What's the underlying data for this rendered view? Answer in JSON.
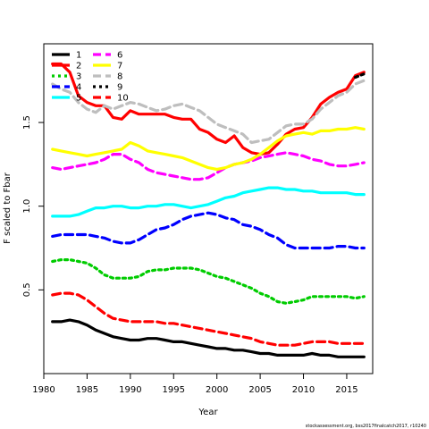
{
  "chart_data": {
    "type": "line",
    "xlabel": "Year",
    "ylabel": "F scaled to Fbar",
    "xlim": [
      1980,
      2018
    ],
    "ylim": [
      0.0,
      1.97
    ],
    "xticks": [
      1980,
      1985,
      1990,
      1995,
      2000,
      2005,
      2010,
      2015
    ],
    "yticks": [
      0.5,
      1.0,
      1.5
    ],
    "footer": "stockassessment.org, bss2017finalcatch2017, r10240",
    "legend_position": "top-left",
    "x": [
      1981,
      1982,
      1983,
      1984,
      1985,
      1986,
      1987,
      1988,
      1989,
      1990,
      1991,
      1992,
      1993,
      1994,
      1995,
      1996,
      1997,
      1998,
      1999,
      2000,
      2001,
      2002,
      2003,
      2004,
      2005,
      2006,
      2007,
      2008,
      2009,
      2010,
      2011,
      2012,
      2013,
      2014,
      2015,
      2016,
      2017
    ],
    "series": [
      {
        "name": "1",
        "color": "#000000",
        "dash": "solid",
        "values": [
          0.31,
          0.31,
          0.32,
          0.31,
          0.29,
          0.26,
          0.24,
          0.22,
          0.21,
          0.2,
          0.2,
          0.21,
          0.21,
          0.2,
          0.19,
          0.19,
          0.18,
          0.17,
          0.16,
          0.15,
          0.15,
          0.14,
          0.14,
          0.13,
          0.12,
          0.12,
          0.11,
          0.11,
          0.11,
          0.11,
          0.12,
          0.11,
          0.11,
          0.1,
          0.1,
          0.1,
          0.1
        ]
      },
      {
        "name": "2",
        "color": "#ff0000",
        "dash": "solid",
        "values": [
          1.85,
          1.85,
          1.8,
          1.66,
          1.62,
          1.6,
          1.6,
          1.53,
          1.52,
          1.57,
          1.55,
          1.55,
          1.55,
          1.55,
          1.53,
          1.52,
          1.52,
          1.46,
          1.44,
          1.4,
          1.38,
          1.42,
          1.35,
          1.32,
          1.31,
          1.32,
          1.37,
          1.43,
          1.46,
          1.47,
          1.53,
          1.61,
          1.65,
          1.68,
          1.7,
          1.78,
          1.8
        ]
      },
      {
        "name": "3",
        "color": "#00cc00",
        "dash": "dotted",
        "values": [
          0.67,
          0.68,
          0.68,
          0.67,
          0.66,
          0.63,
          0.59,
          0.57,
          0.57,
          0.57,
          0.58,
          0.61,
          0.62,
          0.62,
          0.63,
          0.63,
          0.63,
          0.62,
          0.6,
          0.58,
          0.57,
          0.55,
          0.53,
          0.51,
          0.48,
          0.46,
          0.43,
          0.42,
          0.43,
          0.44,
          0.46,
          0.46,
          0.46,
          0.46,
          0.46,
          0.45,
          0.46
        ]
      },
      {
        "name": "4",
        "color": "#0000ff",
        "dash": "dashed",
        "values": [
          0.82,
          0.83,
          0.83,
          0.83,
          0.83,
          0.82,
          0.81,
          0.79,
          0.78,
          0.78,
          0.8,
          0.83,
          0.86,
          0.87,
          0.89,
          0.92,
          0.94,
          0.95,
          0.96,
          0.95,
          0.93,
          0.92,
          0.89,
          0.88,
          0.86,
          0.83,
          0.81,
          0.77,
          0.75,
          0.75,
          0.75,
          0.75,
          0.75,
          0.76,
          0.76,
          0.75,
          0.75
        ]
      },
      {
        "name": "5",
        "color": "#00ffff",
        "dash": "solid",
        "values": [
          0.94,
          0.94,
          0.94,
          0.95,
          0.97,
          0.99,
          0.99,
          1.0,
          1.0,
          0.99,
          0.99,
          1.0,
          1.0,
          1.01,
          1.01,
          1.0,
          0.99,
          1.0,
          1.01,
          1.03,
          1.05,
          1.06,
          1.08,
          1.09,
          1.1,
          1.11,
          1.11,
          1.1,
          1.1,
          1.09,
          1.09,
          1.08,
          1.08,
          1.08,
          1.08,
          1.07,
          1.07
        ]
      },
      {
        "name": "6",
        "color": "#ff00ff",
        "dash": "dashed",
        "values": [
          1.23,
          1.22,
          1.23,
          1.24,
          1.25,
          1.26,
          1.28,
          1.31,
          1.31,
          1.28,
          1.26,
          1.22,
          1.2,
          1.19,
          1.18,
          1.17,
          1.16,
          1.16,
          1.17,
          1.2,
          1.23,
          1.25,
          1.26,
          1.27,
          1.29,
          1.3,
          1.31,
          1.32,
          1.31,
          1.3,
          1.28,
          1.27,
          1.25,
          1.24,
          1.24,
          1.25,
          1.26
        ]
      },
      {
        "name": "7",
        "color": "#ffff00",
        "dash": "solid",
        "values": [
          1.34,
          1.33,
          1.32,
          1.31,
          1.3,
          1.31,
          1.32,
          1.33,
          1.34,
          1.38,
          1.36,
          1.33,
          1.32,
          1.31,
          1.3,
          1.29,
          1.27,
          1.25,
          1.23,
          1.22,
          1.23,
          1.25,
          1.26,
          1.28,
          1.31,
          1.35,
          1.39,
          1.42,
          1.43,
          1.44,
          1.43,
          1.45,
          1.45,
          1.46,
          1.46,
          1.47,
          1.46
        ]
      },
      {
        "name": "8",
        "color": "#bebebe",
        "dash": "dashed",
        "values": [
          1.73,
          1.7,
          1.68,
          1.62,
          1.58,
          1.56,
          1.6,
          1.58,
          1.6,
          1.62,
          1.61,
          1.59,
          1.57,
          1.58,
          1.6,
          1.61,
          1.59,
          1.57,
          1.53,
          1.49,
          1.47,
          1.45,
          1.43,
          1.38,
          1.39,
          1.4,
          1.44,
          1.48,
          1.49,
          1.49,
          1.52,
          1.58,
          1.62,
          1.66,
          1.68,
          1.73,
          1.75
        ]
      },
      {
        "name": "9",
        "color": "#000000",
        "dash": "dotted",
        "values": [
          null,
          null,
          null,
          null,
          null,
          null,
          null,
          null,
          null,
          null,
          null,
          null,
          null,
          null,
          null,
          null,
          null,
          null,
          null,
          null,
          null,
          null,
          null,
          null,
          null,
          null,
          null,
          null,
          null,
          null,
          null,
          null,
          null,
          null,
          null,
          1.77,
          1.79
        ]
      },
      {
        "name": "10",
        "color": "#ff0000",
        "dash": "dashed",
        "values": [
          0.47,
          0.48,
          0.48,
          0.47,
          0.44,
          0.4,
          0.36,
          0.33,
          0.32,
          0.31,
          0.31,
          0.31,
          0.31,
          0.3,
          0.3,
          0.29,
          0.28,
          0.27,
          0.26,
          0.25,
          0.24,
          0.23,
          0.22,
          0.21,
          0.19,
          0.18,
          0.17,
          0.17,
          0.17,
          0.18,
          0.19,
          0.19,
          0.19,
          0.18,
          0.18,
          0.18,
          0.18
        ]
      }
    ]
  }
}
